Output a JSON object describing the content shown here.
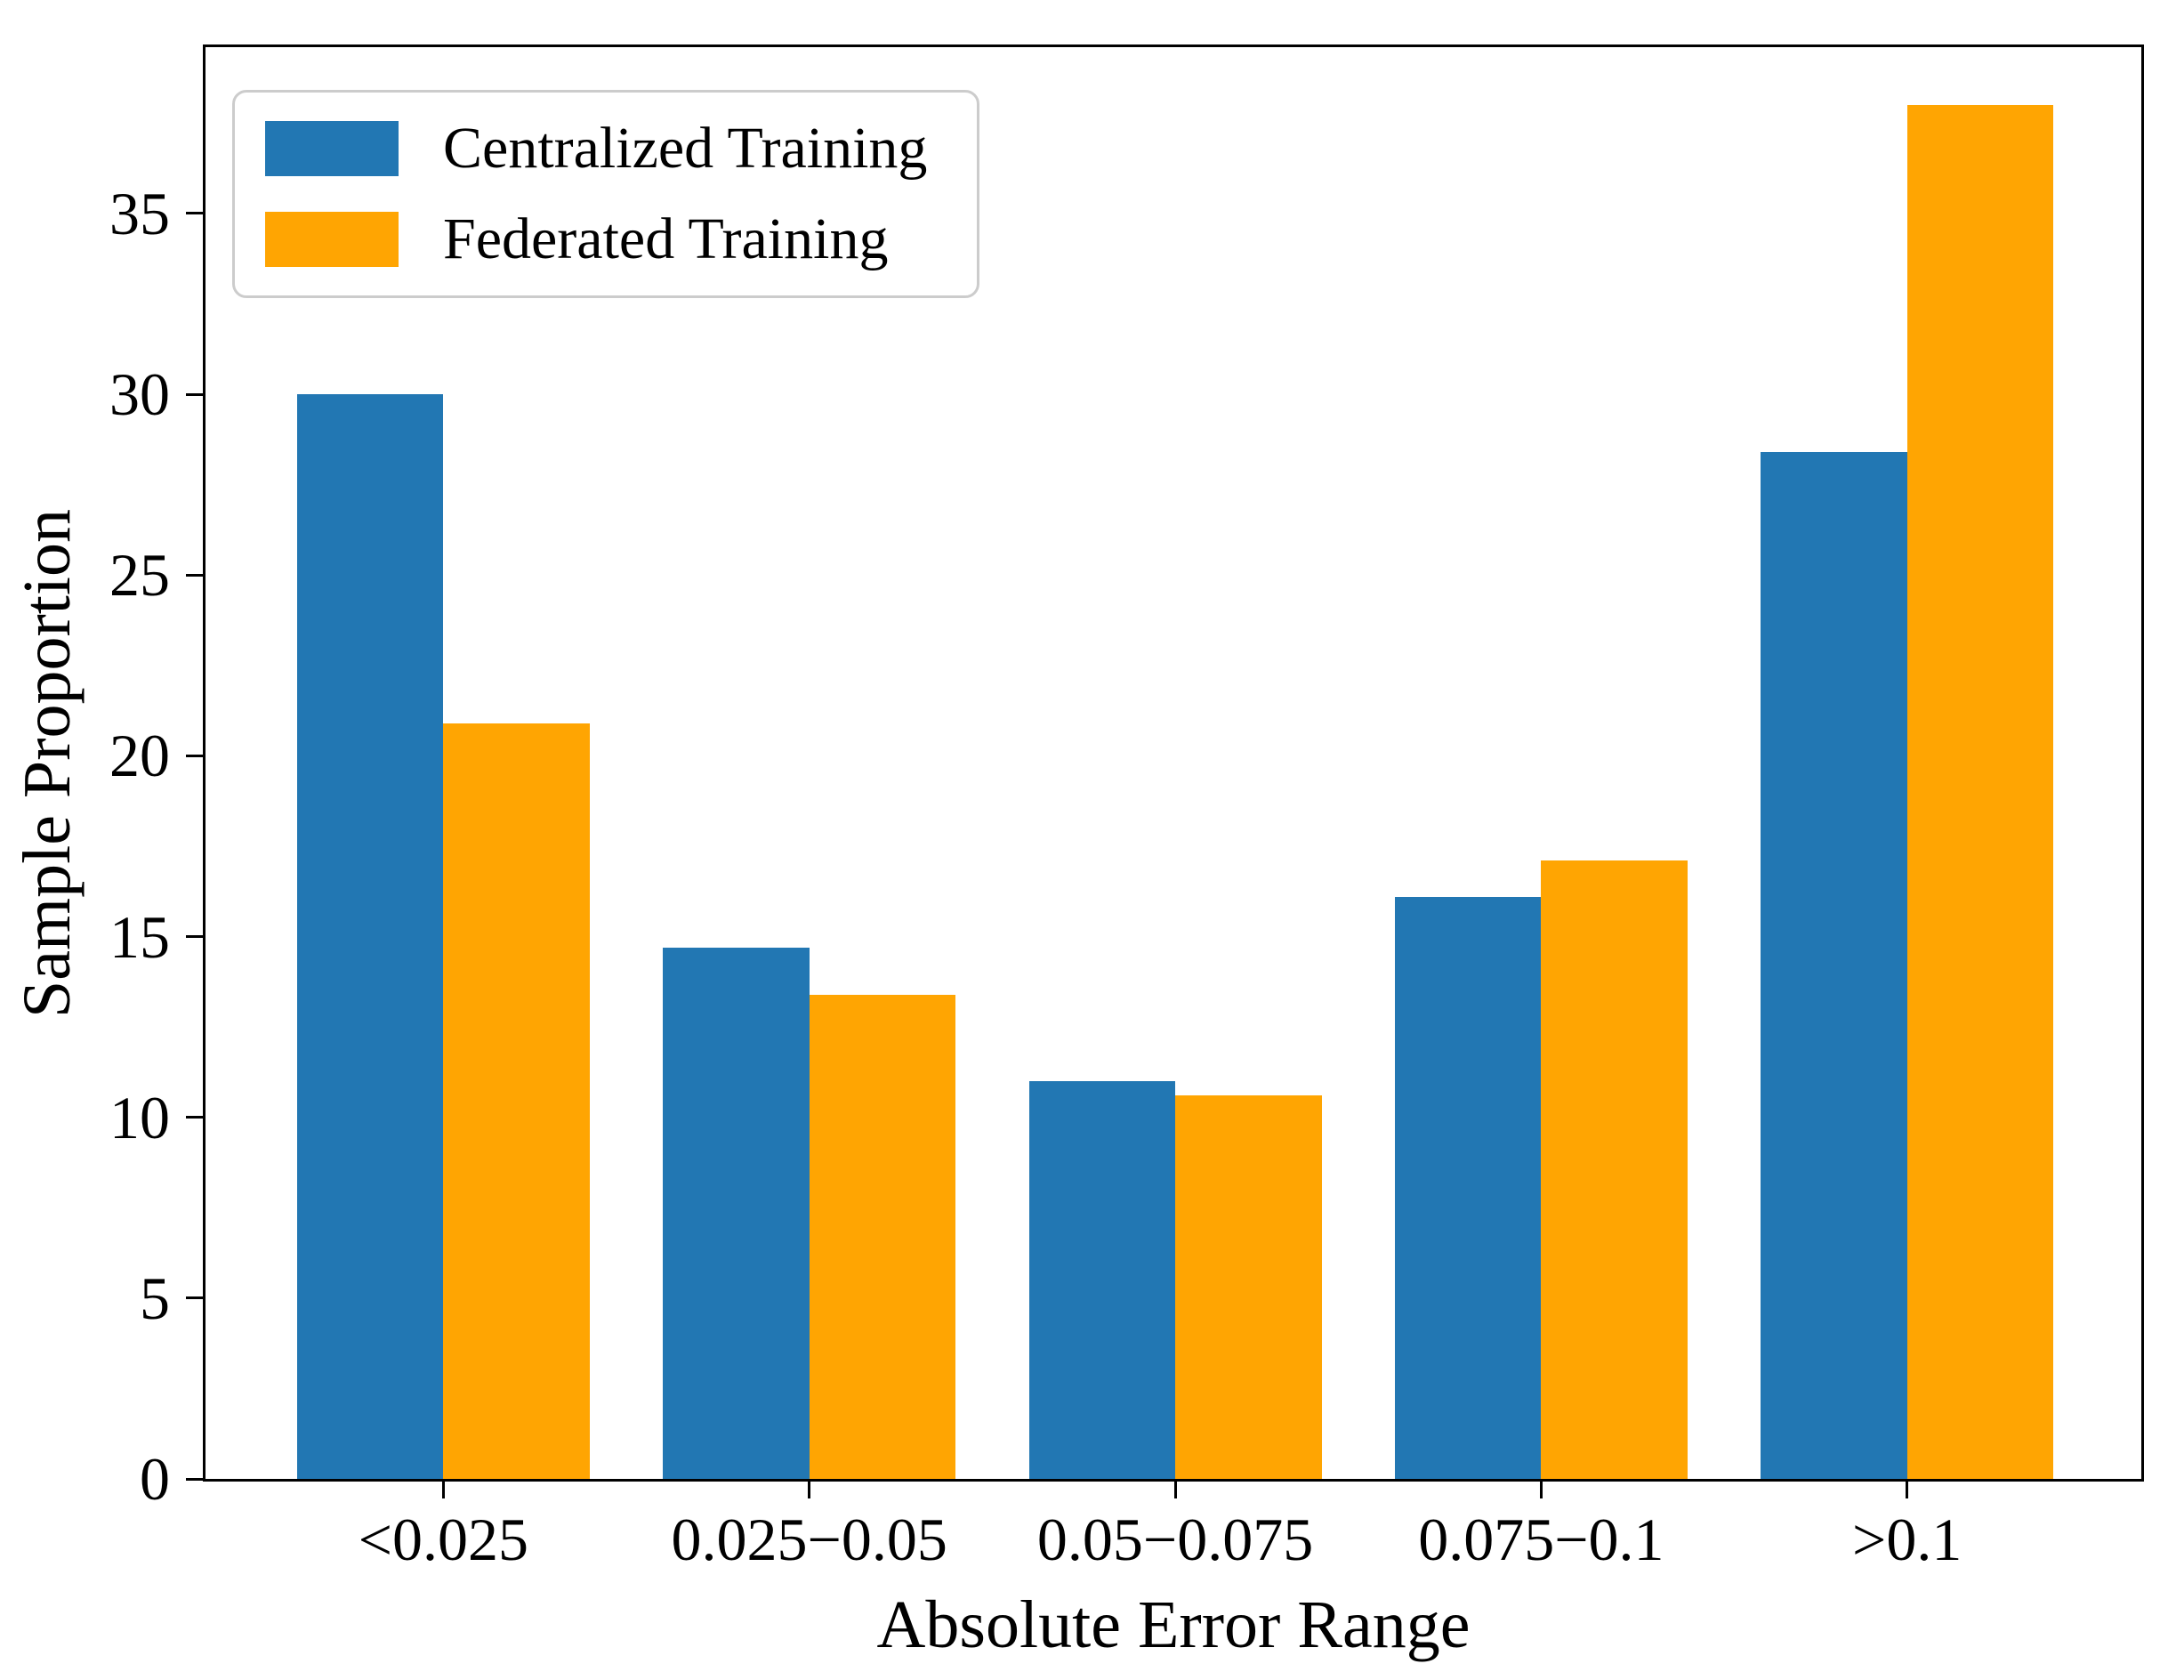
{
  "chart_data": {
    "type": "bar",
    "title": "",
    "xlabel": "Absolute Error Range",
    "ylabel": "Sample Proportion",
    "categories": [
      "<0.025",
      "0.025−0.05",
      "0.05−0.075",
      "0.075−0.1",
      ">0.1"
    ],
    "series": [
      {
        "name": "Centralized Training",
        "color": "#2277b3",
        "values": [
          30.0,
          14.7,
          11.0,
          16.1,
          28.4
        ]
      },
      {
        "name": "Federated Training",
        "color": "#ffa502",
        "values": [
          20.9,
          13.4,
          10.6,
          17.1,
          38.0
        ]
      }
    ],
    "yticks": [
      0,
      5,
      10,
      15,
      20,
      25,
      30,
      35
    ],
    "ylim": [
      0,
      39.6
    ],
    "xlim": [
      -0.65,
      4.64
    ],
    "bar_width": 0.4,
    "grid": false,
    "legend_position": "upper left",
    "frame_color": "#000000",
    "legend_border_color": "#cccccc"
  }
}
